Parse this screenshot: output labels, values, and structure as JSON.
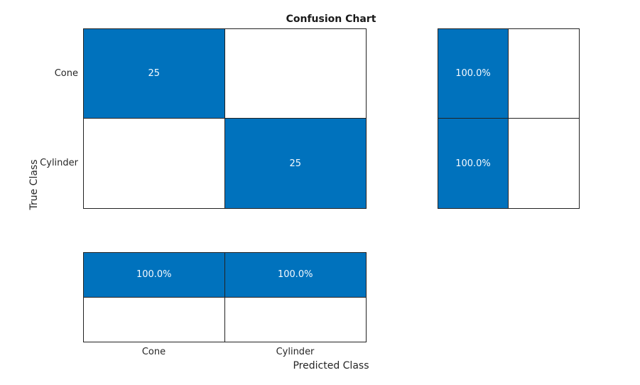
{
  "title": "Confusion Chart",
  "colors": {
    "filled_cell": "#0072BD",
    "empty_cell": "#FFFFFF",
    "grid_border": "#222222",
    "cell_text": "#FFFFFF",
    "label_text": "#262626"
  },
  "axes": {
    "x_label": "Predicted Class",
    "y_label": "True Class",
    "classes": [
      "Cone",
      "Cylinder"
    ]
  },
  "chart_data": {
    "type": "heatmap",
    "title": "Confusion Chart",
    "xlabel": "Predicted Class",
    "ylabel": "True Class",
    "categories": [
      "Cone",
      "Cylinder"
    ],
    "matrix": [
      [
        25,
        0
      ],
      [
        0,
        25
      ]
    ],
    "row_summary_percent": [
      [
        100.0,
        0
      ],
      [
        100.0,
        0
      ]
    ],
    "col_summary_percent": [
      [
        100.0,
        100.0
      ],
      [
        0,
        0
      ]
    ],
    "legend_position": "none",
    "grid": true,
    "cells": {
      "r0c0": "25",
      "r0c1": "",
      "r1c0": "",
      "r1c1": "25"
    },
    "row_summary": {
      "r0c0": "100.0%",
      "r0c1": "",
      "r1c0": "100.0%",
      "r1c1": ""
    },
    "col_summary": {
      "r0c0": "100.0%",
      "r0c1": "100.0%",
      "r1c0": "",
      "r1c1": ""
    }
  }
}
